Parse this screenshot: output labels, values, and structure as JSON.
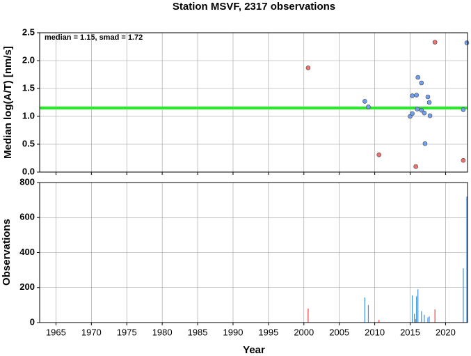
{
  "chart_data": [
    {
      "type": "scatter",
      "title": "Station MSVF, 2317 observations",
      "y_label": "Median log(A/T) [nm/s]",
      "annotation": "median = 1.15, smad = 1.72",
      "reference_line": {
        "value": 1.15,
        "color": "#22ee22"
      },
      "xlim": [
        1962.7,
        2023.1
      ],
      "xticks": [
        1965,
        1970,
        1975,
        1980,
        1985,
        1990,
        1995,
        2000,
        2005,
        2010,
        2015,
        2020
      ],
      "ylim": [
        0,
        2.5
      ],
      "yticks": [
        {
          "value": 0,
          "label": "0.0"
        },
        {
          "value": 0.5,
          "label": "0.5"
        },
        {
          "value": 1,
          "label": "1.0"
        },
        {
          "value": 1.5,
          "label": "1.5"
        },
        {
          "value": 2,
          "label": "2.0"
        },
        {
          "value": 2.5,
          "label": "2.5"
        }
      ],
      "grid": true,
      "series": [
        {
          "color": "#f07070",
          "x": [
            2000.6,
            2010.6,
            2015.8,
            2018.5,
            2022.5
          ],
          "values": [
            1.87,
            0.31,
            0.1,
            2.33,
            0.21
          ]
        },
        {
          "color": "#6fa0f0",
          "x": [
            2008.6,
            2009.1,
            2015.0,
            2015.3,
            2015.3,
            2015.9,
            2016.0,
            2016.1,
            2016.6,
            2016.6,
            2017.0,
            2017.1,
            2017.5,
            2017.7,
            2017.8,
            2022.5,
            2023.0
          ],
          "values": [
            1.27,
            1.17,
            1.0,
            1.05,
            1.37,
            1.38,
            1.13,
            1.7,
            1.6,
            1.11,
            1.06,
            0.51,
            1.35,
            1.25,
            1.01,
            1.12,
            2.32
          ]
        }
      ]
    },
    {
      "type": "bar",
      "y_label": "Observations",
      "x_label": "Year",
      "xlim": [
        1962.7,
        2023.1
      ],
      "xticks": [
        1965,
        1970,
        1975,
        1980,
        1985,
        1990,
        1995,
        2000,
        2005,
        2010,
        2015,
        2020
      ],
      "ylim": [
        0,
        800
      ],
      "yticks": [
        0,
        200,
        400,
        600,
        800
      ],
      "grid": true,
      "series": [
        {
          "color": "#f04040",
          "x": [
            2000.6,
            2010.6,
            2015.8,
            2018.5
          ],
          "values": [
            80,
            15,
            20,
            75
          ]
        },
        {
          "color": "#3a8ee6",
          "x": [
            2008.6,
            2009.1,
            2015.3,
            2015.6,
            2015.9,
            2016.1,
            2016.6,
            2017.0,
            2017.5,
            2017.7,
            2022.5,
            2023.0
          ],
          "values": [
            143,
            100,
            155,
            50,
            150,
            190,
            65,
            45,
            30,
            35,
            310,
            720
          ]
        }
      ]
    }
  ]
}
